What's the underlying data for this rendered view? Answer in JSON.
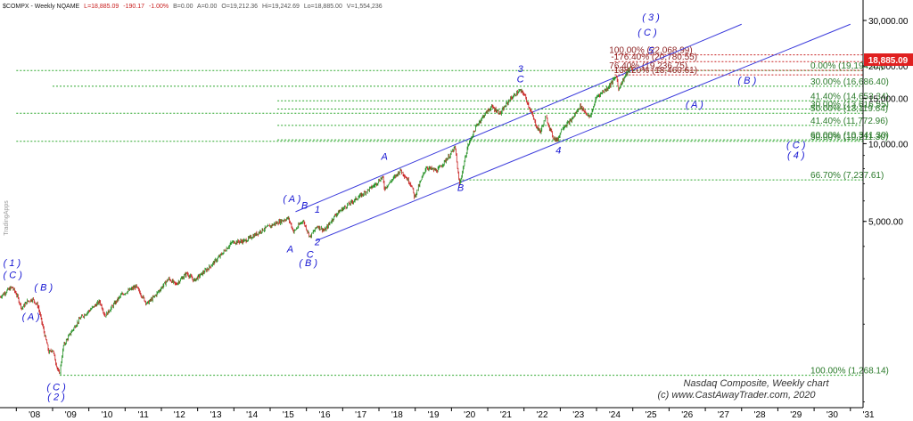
{
  "header": {
    "symbol": "$COMPX - Weekly NQAME",
    "last": "L=18,885.09",
    "change": "-190.17",
    "change_pct": "-1.00%",
    "bid": "B=0.00",
    "ask": "A=0.00",
    "open": "O=19,212.36",
    "high": "Hi=19,242.69",
    "low": "Lo=18,885.00",
    "volume": "V=1,554,236"
  },
  "watermark": "TradingApps",
  "current_price_label": "18,885.09",
  "colors": {
    "candle_up": "#1e8e1e",
    "candle_down": "#c81e1e",
    "channel": "#3c3cdc",
    "fib_green": "#2ea82e",
    "fib_red": "#c82020",
    "wave_label": "#1414d2",
    "price_tag": "#e02020"
  },
  "chart_data": {
    "type": "candlestick",
    "timeframe": "weekly",
    "y_scale": "log",
    "ylim": [
      950,
      36000
    ],
    "xlim": [
      2007.55,
      2031.35
    ],
    "x_tick_labels": [
      "'08",
      "'09",
      "'10",
      "'11",
      "'12",
      "'13",
      "'14",
      "'15",
      "'16",
      "'17",
      "'18",
      "'19",
      "'20",
      "'21",
      "'22",
      "'23",
      "'24",
      "'25",
      "'26",
      "'27",
      "'28",
      "'29",
      "'30",
      "'31"
    ],
    "x_tick_years": [
      2008,
      2009,
      2010,
      2011,
      2012,
      2013,
      2014,
      2015,
      2016,
      2017,
      2018,
      2019,
      2020,
      2021,
      2022,
      2023,
      2024,
      2025,
      2026,
      2027,
      2028,
      2029,
      2030,
      2031
    ],
    "y_ticks": [
      {
        "value": 30000,
        "label": "30,000.00"
      },
      {
        "value": 20000,
        "label": "20,000.00"
      },
      {
        "value": 15000,
        "label": "15,000.00"
      },
      {
        "value": 10000,
        "label": "10,000.00"
      },
      {
        "value": 5000,
        "label": "5,000.00"
      }
    ],
    "price_path": [
      [
        2007.55,
        2550
      ],
      [
        2007.75,
        2700
      ],
      [
        2007.88,
        2780
      ],
      [
        2008.0,
        2620
      ],
      [
        2008.15,
        2300
      ],
      [
        2008.3,
        2450
      ],
      [
        2008.45,
        2500
      ],
      [
        2008.6,
        2350
      ],
      [
        2008.75,
        1900
      ],
      [
        2008.9,
        1550
      ],
      [
        2009.0,
        1600
      ],
      [
        2009.1,
        1400
      ],
      [
        2009.19,
        1268
      ],
      [
        2009.3,
        1650
      ],
      [
        2009.5,
        1850
      ],
      [
        2009.75,
        2100
      ],
      [
        2010.0,
        2250
      ],
      [
        2010.3,
        2450
      ],
      [
        2010.45,
        2150
      ],
      [
        2010.6,
        2300
      ],
      [
        2010.9,
        2600
      ],
      [
        2011.3,
        2800
      ],
      [
        2011.6,
        2400
      ],
      [
        2011.8,
        2550
      ],
      [
        2012.2,
        3000
      ],
      [
        2012.4,
        2850
      ],
      [
        2012.7,
        3150
      ],
      [
        2012.9,
        2950
      ],
      [
        2013.3,
        3300
      ],
      [
        2013.6,
        3650
      ],
      [
        2013.95,
        4150
      ],
      [
        2014.3,
        4200
      ],
      [
        2014.6,
        4450
      ],
      [
        2014.8,
        4650
      ],
      [
        2015.2,
        4950
      ],
      [
        2015.5,
        5150
      ],
      [
        2015.65,
        4550
      ],
      [
        2015.9,
        5050
      ],
      [
        2016.1,
        4350
      ],
      [
        2016.3,
        4800
      ],
      [
        2016.5,
        4600
      ],
      [
        2016.8,
        5300
      ],
      [
        2017.0,
        5600
      ],
      [
        2017.5,
        6300
      ],
      [
        2017.9,
        6950
      ],
      [
        2018.1,
        7450
      ],
      [
        2018.15,
        6700
      ],
      [
        2018.6,
        7900
      ],
      [
        2018.9,
        6900
      ],
      [
        2018.98,
        6200
      ],
      [
        2019.3,
        8100
      ],
      [
        2019.6,
        7850
      ],
      [
        2019.95,
        9000
      ],
      [
        2020.1,
        9700
      ],
      [
        2020.22,
        6900
      ],
      [
        2020.45,
        9800
      ],
      [
        2020.7,
        11800
      ],
      [
        2020.9,
        12900
      ],
      [
        2021.1,
        13900
      ],
      [
        2021.35,
        13100
      ],
      [
        2021.6,
        14800
      ],
      [
        2021.88,
        16050
      ],
      [
        2022.0,
        15600
      ],
      [
        2022.2,
        13200
      ],
      [
        2022.35,
        11600
      ],
      [
        2022.45,
        11100
      ],
      [
        2022.6,
        12700
      ],
      [
        2022.8,
        10600
      ],
      [
        2022.92,
        10300
      ],
      [
        2023.05,
        11500
      ],
      [
        2023.3,
        12300
      ],
      [
        2023.55,
        14000
      ],
      [
        2023.82,
        12600
      ],
      [
        2024.0,
        15200
      ],
      [
        2024.3,
        16400
      ],
      [
        2024.55,
        18300
      ],
      [
        2024.6,
        16250
      ],
      [
        2024.8,
        18400
      ],
      [
        2024.95,
        19800
      ],
      [
        2025.0,
        19200
      ],
      [
        2025.03,
        18885
      ]
    ],
    "channel_lines": [
      {
        "x1": 2015.7,
        "y1": 5450,
        "x2": 2028.0,
        "y2": 29000
      },
      {
        "x1": 2016.25,
        "y1": 4200,
        "x2": 2031.0,
        "y2": 29000
      }
    ],
    "fib_levels_green": [
      {
        "value": 19194.45,
        "label": "0.00% (19,194.45)",
        "x_start": 2008.0,
        "label_x": 2029.9
      },
      {
        "value": 16686.4,
        "label": "30.00% (16,686.40)",
        "x_start": 2009.0,
        "label_x": 2029.9
      },
      {
        "value": 14653.34,
        "label": "41.40% (14,653.34)",
        "x_start": 2015.2,
        "label_x": 2029.9
      },
      {
        "value": 13616.55,
        "label": "30.00% (13,616.55)",
        "x_start": 2015.2,
        "label_x": 2029.9
      },
      {
        "value": 13119.64,
        "label": "50.00% (13,119.64)",
        "x_start": 2008.0,
        "label_x": 2029.9
      },
      {
        "value": 11772.96,
        "label": "41.40% (11,772.96)",
        "x_start": 2015.2,
        "label_x": 2029.9
      },
      {
        "value": 10341.3,
        "label": "60.00% (10,341.30)",
        "x_start": 2015.2,
        "label_x": 2029.9
      },
      {
        "value": 10211.3,
        "label": "50.00% (10,211.30)",
        "x_start": 2008.0,
        "label_x": 2029.9
      },
      {
        "value": 7237.61,
        "label": "66.70% (7,237.61)",
        "x_start": 2020.2,
        "label_x": 2029.9
      },
      {
        "value": 1268.14,
        "label": "100.00% (1,268.14)",
        "x_start": 2009.2,
        "label_x": 2029.9
      }
    ],
    "fib_levels_red": [
      {
        "value": 22068.99,
        "label": "100.00% (22,068.99)",
        "x_start": 2024.5,
        "label_x": 2024.35
      },
      {
        "value": 20780.55,
        "label": "-176.40% (20,780.55)",
        "x_start": 2024.5,
        "label_x": 2024.4
      },
      {
        "value": 19236.75,
        "label": "76.40% (19,236.75)",
        "x_start": 2024.5,
        "label_x": 2024.35
      },
      {
        "value": 18460.61,
        "label": "-138.20% (18,460.61)",
        "x_start": 2024.5,
        "label_x": 2024.4
      }
    ],
    "wave_labels": [
      {
        "text": "( 1 )",
        "x": 2007.88,
        "y": 3350
      },
      {
        "text": "( C )",
        "x": 2007.9,
        "y": 3020
      },
      {
        "text": "( B )",
        "x": 2008.75,
        "y": 2700
      },
      {
        "text": "( A )",
        "x": 2008.4,
        "y": 2080
      },
      {
        "text": "( C )",
        "x": 2009.1,
        "y": 1110
      },
      {
        "text": "( 2 )",
        "x": 2009.1,
        "y": 1015
      },
      {
        "text": "( A )",
        "x": 2015.6,
        "y": 5950
      },
      {
        "text": "B",
        "x": 2015.95,
        "y": 5600
      },
      {
        "text": "1",
        "x": 2016.3,
        "y": 5400
      },
      {
        "text": "2",
        "x": 2016.3,
        "y": 4050
      },
      {
        "text": "A",
        "x": 2015.55,
        "y": 3800
      },
      {
        "text": "C",
        "x": 2016.1,
        "y": 3620
      },
      {
        "text": "( B )",
        "x": 2016.05,
        "y": 3350
      },
      {
        "text": "A",
        "x": 2018.15,
        "y": 8650
      },
      {
        "text": "B",
        "x": 2020.25,
        "y": 6550
      },
      {
        "text": "3",
        "x": 2021.9,
        "y": 18900
      },
      {
        "text": "C",
        "x": 2021.9,
        "y": 17300
      },
      {
        "text": "4",
        "x": 2022.95,
        "y": 9150
      },
      {
        "text": "( 3 )",
        "x": 2025.5,
        "y": 30000
      },
      {
        "text": "( C )",
        "x": 2025.4,
        "y": 26200
      },
      {
        "text": "5",
        "x": 2025.5,
        "y": 22300
      },
      {
        "text": "( B )",
        "x": 2028.15,
        "y": 17050
      },
      {
        "text": "( A )",
        "x": 2026.7,
        "y": 13800
      },
      {
        "text": "( C )",
        "x": 2029.5,
        "y": 9600
      },
      {
        "text": "( 4 )",
        "x": 2029.5,
        "y": 8750
      }
    ],
    "annotations": [
      "Nasdaq Composite, Weekly chart",
      "(c) www.CastAwayTrader.com, 2020"
    ]
  }
}
